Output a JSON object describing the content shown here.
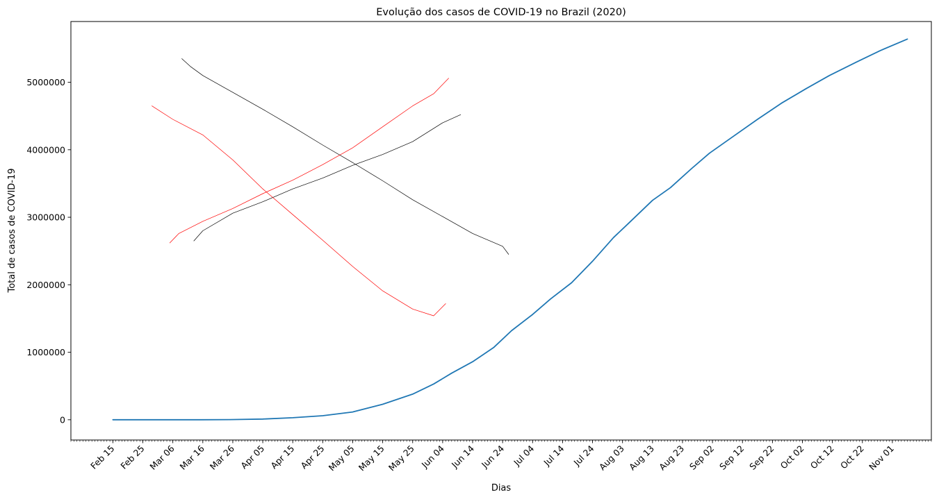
{
  "chart_data": {
    "type": "line",
    "title": "Evolução dos casos de COVID-19 no Brazil (2020)",
    "xlabel": "Dias",
    "ylabel": "Total de casos de COVID-19",
    "ylim": [
      -300000,
      5900000
    ],
    "y_ticks": [
      0,
      1000000,
      2000000,
      3000000,
      4000000,
      5000000
    ],
    "y_tick_labels": [
      "0",
      "1000000",
      "2000000",
      "3000000",
      "4000000",
      "5000000"
    ],
    "x_range": [
      "2020-02-01",
      "2020-11-14"
    ],
    "x_tick_dates": [
      "2020-02-15",
      "2020-02-25",
      "2020-03-06",
      "2020-03-16",
      "2020-03-26",
      "2020-04-05",
      "2020-04-15",
      "2020-04-25",
      "2020-05-05",
      "2020-05-15",
      "2020-05-25",
      "2020-06-04",
      "2020-06-14",
      "2020-06-24",
      "2020-07-04",
      "2020-07-14",
      "2020-07-24",
      "2020-08-03",
      "2020-08-13",
      "2020-08-23",
      "2020-09-02",
      "2020-09-12",
      "2020-09-22",
      "2020-10-02",
      "2020-10-12",
      "2020-10-22",
      "2020-11-01"
    ],
    "x_tick_labels": [
      "Feb 15",
      "Feb 25",
      "Mar 06",
      "Mar 16",
      "Mar 26",
      "Apr 05",
      "Apr 15",
      "Apr 25",
      "May 05",
      "May 15",
      "May 25",
      "Jun 04",
      "Jun 14",
      "Jun 24",
      "Jul 04",
      "Jul 14",
      "Jul 24",
      "Aug 03",
      "Aug 13",
      "Aug 23",
      "Sep 02",
      "Sep 12",
      "Sep 22",
      "Oct 02",
      "Oct 12",
      "Oct 22",
      "Nov 01"
    ],
    "minor_ticks": "daily",
    "grid": false,
    "series": [
      {
        "color": "#1f77b4",
        "x": [
          "2020-02-15",
          "2020-03-15",
          "2020-03-25",
          "2020-04-05",
          "2020-04-15",
          "2020-04-25",
          "2020-05-05",
          "2020-05-15",
          "2020-05-25",
          "2020-06-01",
          "2020-06-07",
          "2020-06-14",
          "2020-06-21",
          "2020-06-27",
          "2020-07-04",
          "2020-07-10",
          "2020-07-17",
          "2020-07-24",
          "2020-07-31",
          "2020-08-05",
          "2020-08-13",
          "2020-08-19",
          "2020-08-26",
          "2020-09-01",
          "2020-09-09",
          "2020-09-17",
          "2020-09-25",
          "2020-10-03",
          "2020-10-11",
          "2020-10-20",
          "2020-10-28",
          "2020-11-06"
        ],
        "y": [
          0,
          200,
          2500,
          11000,
          30000,
          60000,
          115000,
          230000,
          380000,
          530000,
          690000,
          860000,
          1070000,
          1320000,
          1560000,
          1790000,
          2030000,
          2350000,
          2700000,
          2910000,
          3250000,
          3440000,
          3720000,
          3950000,
          4200000,
          4450000,
          4690000,
          4900000,
          5100000,
          5300000,
          5470000,
          5640000
        ]
      },
      {
        "color": "#000000",
        "x": [
          "2020-03-09",
          "2020-03-12",
          "2020-03-16",
          "2020-03-26",
          "2020-04-05",
          "2020-04-15",
          "2020-04-25",
          "2020-05-05",
          "2020-05-15",
          "2020-05-25",
          "2020-06-04",
          "2020-06-14",
          "2020-06-24",
          "2020-06-26"
        ],
        "y": [
          5350000,
          5230000,
          5100000,
          4850000,
          4600000,
          4340000,
          4070000,
          3810000,
          3540000,
          3260000,
          3010000,
          2760000,
          2570000,
          2450000
        ]
      },
      {
        "color": "#000000",
        "x": [
          "2020-03-13",
          "2020-03-16",
          "2020-03-26",
          "2020-04-05",
          "2020-04-15",
          "2020-04-25",
          "2020-05-05",
          "2020-05-15",
          "2020-05-25",
          "2020-06-04",
          "2020-06-10"
        ],
        "y": [
          2650000,
          2800000,
          3060000,
          3230000,
          3420000,
          3580000,
          3770000,
          3930000,
          4120000,
          4400000,
          4520000
        ]
      },
      {
        "color": "#ff0000",
        "x": [
          "2020-02-28",
          "2020-03-06",
          "2020-03-16",
          "2020-03-26",
          "2020-04-05",
          "2020-04-15",
          "2020-04-25",
          "2020-05-05",
          "2020-05-15",
          "2020-05-25",
          "2020-06-01",
          "2020-06-05"
        ],
        "y": [
          4650000,
          4450000,
          4220000,
          3850000,
          3420000,
          3040000,
          2660000,
          2270000,
          1910000,
          1640000,
          1540000,
          1720000
        ]
      },
      {
        "color": "#ff0000",
        "x": [
          "2020-03-05",
          "2020-03-08",
          "2020-03-16",
          "2020-03-26",
          "2020-04-05",
          "2020-04-15",
          "2020-04-25",
          "2020-05-05",
          "2020-05-15",
          "2020-05-25",
          "2020-06-01",
          "2020-06-06"
        ],
        "y": [
          2620000,
          2760000,
          2940000,
          3130000,
          3350000,
          3550000,
          3780000,
          4030000,
          4340000,
          4650000,
          4830000,
          5060000
        ]
      }
    ]
  }
}
